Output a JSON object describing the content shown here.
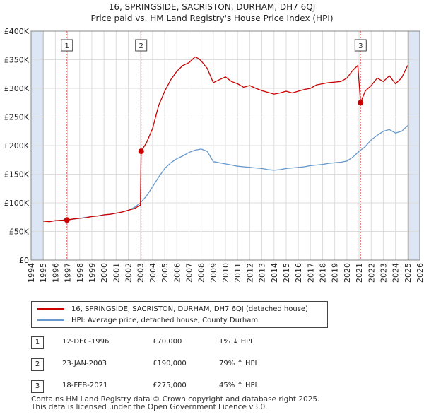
{
  "header": {
    "title_line1": "16, SPRINGSIDE, SACRISTON, DURHAM, DH7 6QJ",
    "title_line2": "Price paid vs. HM Land Registry's House Price Index (HPI)"
  },
  "colors": {
    "property": "#cc0000",
    "hpi": "#6699cc",
    "marker_line": "#e06a6a",
    "grid": "#dddddd",
    "shade": "#dde6f4"
  },
  "chart_data": {
    "type": "line",
    "xlim": [
      1994,
      2026
    ],
    "ylim": [
      0,
      400000
    ],
    "x_ticks": [
      "1994",
      "1995",
      "1996",
      "1997",
      "1998",
      "1999",
      "2000",
      "2001",
      "2002",
      "2003",
      "2004",
      "2005",
      "2006",
      "2007",
      "2008",
      "2009",
      "2010",
      "2011",
      "2012",
      "2013",
      "2014",
      "2015",
      "2016",
      "2017",
      "2018",
      "2019",
      "2020",
      "2021",
      "2022",
      "2023",
      "2024",
      "2025",
      "2026"
    ],
    "y_ticks": [
      {
        "value": 0,
        "label": "£0"
      },
      {
        "value": 50000,
        "label": "£50K"
      },
      {
        "value": 100000,
        "label": "£100K"
      },
      {
        "value": 150000,
        "label": "£150K"
      },
      {
        "value": 200000,
        "label": "£200K"
      },
      {
        "value": 250000,
        "label": "£250K"
      },
      {
        "value": 300000,
        "label": "£300K"
      },
      {
        "value": 350000,
        "label": "£350K"
      },
      {
        "value": 400000,
        "label": "£400K"
      }
    ],
    "data_range": [
      1995.0,
      2025.1
    ],
    "series": [
      {
        "name": "16, SPRINGSIDE, SACRISTON, DURHAM, DH7 6QJ (detached house)",
        "x": [
          1995.0,
          1995.5,
          1996.0,
          1996.5,
          1996.95,
          1997.5,
          1998.0,
          1998.5,
          1999.0,
          1999.5,
          2000.0,
          2000.5,
          2001.0,
          2001.5,
          2002.0,
          2002.5,
          2003.0,
          2003.06,
          2003.5,
          2004.0,
          2004.5,
          2005.0,
          2005.5,
          2006.0,
          2006.5,
          2007.0,
          2007.5,
          2007.8,
          2008.0,
          2008.5,
          2009.0,
          2009.5,
          2010.0,
          2010.5,
          2011.0,
          2011.5,
          2012.0,
          2012.5,
          2013.0,
          2013.5,
          2014.0,
          2014.5,
          2015.0,
          2015.5,
          2016.0,
          2016.5,
          2017.0,
          2017.5,
          2018.0,
          2018.5,
          2019.0,
          2019.5,
          2020.0,
          2020.5,
          2020.9,
          2021.13,
          2021.5,
          2022.0,
          2022.5,
          2023.0,
          2023.5,
          2024.0,
          2024.5,
          2025.0
        ],
        "values": [
          68000,
          67000,
          69000,
          69500,
          70000,
          72000,
          73000,
          74000,
          76000,
          77000,
          79000,
          80000,
          82000,
          84000,
          87000,
          90000,
          96000,
          190000,
          205000,
          230000,
          270000,
          295000,
          315000,
          330000,
          340000,
          345000,
          355000,
          352000,
          348000,
          335000,
          310000,
          315000,
          320000,
          312000,
          308000,
          302000,
          305000,
          300000,
          296000,
          293000,
          290000,
          292000,
          295000,
          292000,
          295000,
          298000,
          300000,
          306000,
          308000,
          310000,
          311000,
          312000,
          318000,
          332000,
          340000,
          275000,
          295000,
          305000,
          318000,
          312000,
          322000,
          308000,
          318000,
          340000
        ]
      },
      {
        "name": "HPI: Average price, detached house, County Durham",
        "x": [
          1995.0,
          1995.5,
          1996.0,
          1996.5,
          1997.0,
          1997.5,
          1998.0,
          1998.5,
          1999.0,
          1999.5,
          2000.0,
          2000.5,
          2001.0,
          2001.5,
          2002.0,
          2002.5,
          2003.0,
          2003.5,
          2004.0,
          2004.5,
          2005.0,
          2005.5,
          2006.0,
          2006.5,
          2007.0,
          2007.5,
          2008.0,
          2008.5,
          2009.0,
          2009.5,
          2010.0,
          2010.5,
          2011.0,
          2011.5,
          2012.0,
          2012.5,
          2013.0,
          2013.5,
          2014.0,
          2014.5,
          2015.0,
          2015.5,
          2016.0,
          2016.5,
          2017.0,
          2017.5,
          2018.0,
          2018.5,
          2019.0,
          2019.5,
          2020.0,
          2020.5,
          2021.0,
          2021.5,
          2022.0,
          2022.5,
          2023.0,
          2023.5,
          2024.0,
          2024.5,
          2025.0
        ],
        "values": [
          68000,
          67500,
          68500,
          69500,
          70000,
          71500,
          73000,
          74500,
          76000,
          77000,
          79000,
          80000,
          82000,
          84000,
          87000,
          92000,
          100000,
          112000,
          128000,
          145000,
          160000,
          170000,
          177000,
          182000,
          188000,
          192000,
          194000,
          190000,
          172000,
          170000,
          168000,
          166000,
          164000,
          163000,
          162000,
          161000,
          160000,
          158000,
          157000,
          158000,
          160000,
          161000,
          162000,
          163000,
          165000,
          166000,
          167000,
          169000,
          170000,
          171000,
          173000,
          180000,
          190000,
          198000,
          210000,
          218000,
          225000,
          228000,
          222000,
          225000,
          235000
        ]
      }
    ],
    "transactions": [
      {
        "label": "1",
        "x": 1996.95,
        "value": 70000
      },
      {
        "label": "2",
        "x": 2003.06,
        "value": 190000
      },
      {
        "label": "3",
        "x": 2021.13,
        "value": 275000
      }
    ]
  },
  "legend": {
    "property_label": "16, SPRINGSIDE, SACRISTON, DURHAM, DH7 6QJ (detached house)",
    "hpi_label": "HPI: Average price, detached house, County Durham"
  },
  "sales": [
    {
      "num": "1",
      "date": "12-DEC-1996",
      "price": "£70,000",
      "hpi": "1% ↓ HPI"
    },
    {
      "num": "2",
      "date": "23-JAN-2003",
      "price": "£190,000",
      "hpi": "79% ↑ HPI"
    },
    {
      "num": "3",
      "date": "18-FEB-2021",
      "price": "£275,000",
      "hpi": "45% ↑ HPI"
    }
  ],
  "footer": {
    "line1": "Contains HM Land Registry data © Crown copyright and database right 2025.",
    "line2": "This data is licensed under the Open Government Licence v3.0."
  }
}
